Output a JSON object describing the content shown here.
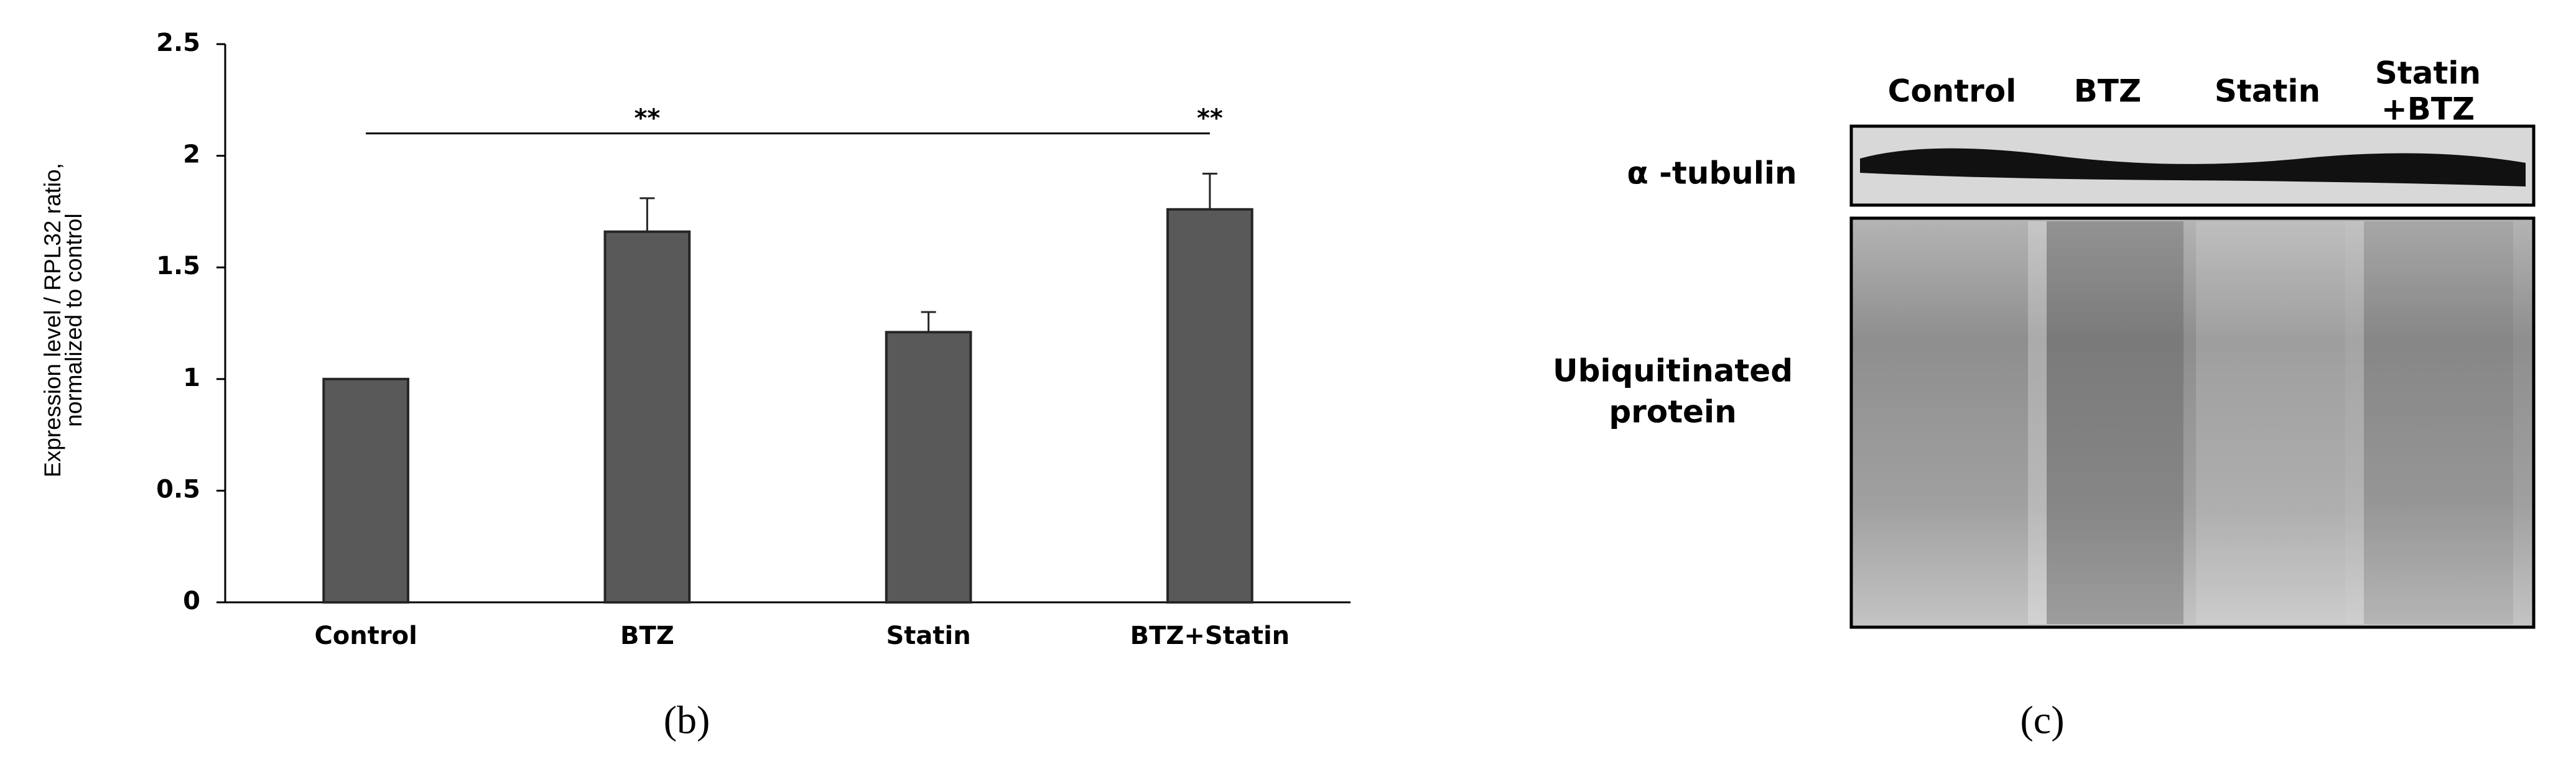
{
  "chart_data": {
    "type": "bar",
    "ylabel": [
      "Expression level / RPL32 ratio,",
      "normalized to control"
    ],
    "categories": [
      "Control",
      "BTZ",
      "Statin",
      "BTZ+Statin"
    ],
    "values": [
      1.0,
      1.66,
      1.21,
      1.76
    ],
    "errors": [
      null,
      0.15,
      0.09,
      0.16
    ],
    "color": "#595959",
    "ylim": [
      0,
      2.5
    ],
    "yticks": [
      0,
      0.5,
      1,
      1.5,
      2,
      2.5
    ],
    "bracket": {
      "y": 2.1,
      "from": "Control",
      "to": "BTZ+Statin"
    },
    "annotations": [
      {
        "text": "**",
        "x": "BTZ"
      },
      {
        "text": "**",
        "x": "BTZ+Statin"
      }
    ]
  },
  "panel_labels": [
    "(b)",
    "(c)"
  ],
  "blot": {
    "lanes": [
      [
        "Control"
      ],
      [
        "BTZ"
      ],
      [
        "Statin"
      ],
      [
        "Statin",
        "+BTZ"
      ]
    ],
    "rows": {
      "tubulin": "α -tubulin",
      "ubiquitinated": [
        "Ubiquitinated",
        "protein"
      ]
    }
  }
}
